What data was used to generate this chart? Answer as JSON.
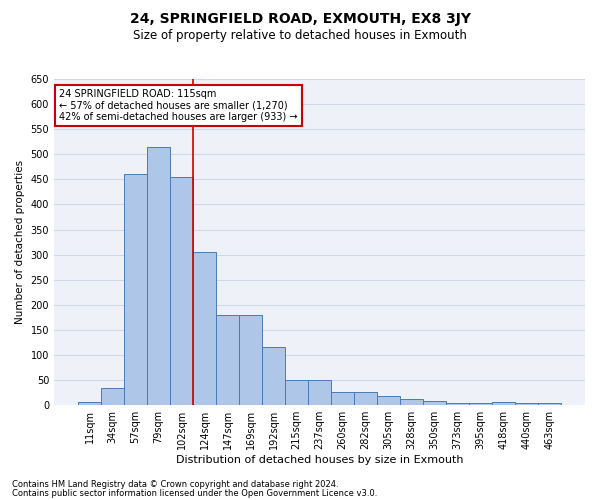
{
  "title": "24, SPRINGFIELD ROAD, EXMOUTH, EX8 3JY",
  "subtitle": "Size of property relative to detached houses in Exmouth",
  "xlabel": "Distribution of detached houses by size in Exmouth",
  "ylabel": "Number of detached properties",
  "footnote1": "Contains HM Land Registry data © Crown copyright and database right 2024.",
  "footnote2": "Contains public sector information licensed under the Open Government Licence v3.0.",
  "annotation_line1": "24 SPRINGFIELD ROAD: 115sqm",
  "annotation_line2": "← 57% of detached houses are smaller (1,270)",
  "annotation_line3": "42% of semi-detached houses are larger (933) →",
  "bar_values": [
    7,
    35,
    460,
    515,
    455,
    305,
    180,
    180,
    115,
    50,
    50,
    27,
    27,
    18,
    12,
    9,
    5,
    5,
    7,
    5,
    5
  ],
  "x_labels": [
    "11sqm",
    "34sqm",
    "57sqm",
    "79sqm",
    "102sqm",
    "124sqm",
    "147sqm",
    "169sqm",
    "192sqm",
    "215sqm",
    "237sqm",
    "260sqm",
    "282sqm",
    "305sqm",
    "328sqm",
    "350sqm",
    "373sqm",
    "395sqm",
    "418sqm",
    "440sqm",
    "463sqm"
  ],
  "bar_color": "#aec6e8",
  "bar_edgecolor": "#4a7ab5",
  "grid_color": "#d0d8e8",
  "background_color": "#eef2f8",
  "redline_x": 4.5,
  "redline_color": "#cc0000",
  "annotation_box_color": "#cc0000",
  "ylim": [
    0,
    650
  ],
  "yticks": [
    0,
    50,
    100,
    150,
    200,
    250,
    300,
    350,
    400,
    450,
    500,
    550,
    600,
    650
  ],
  "title_fontsize": 10,
  "subtitle_fontsize": 8.5,
  "ylabel_fontsize": 7.5,
  "xlabel_fontsize": 8,
  "tick_fontsize": 7,
  "annotation_fontsize": 7,
  "footnote_fontsize": 6
}
